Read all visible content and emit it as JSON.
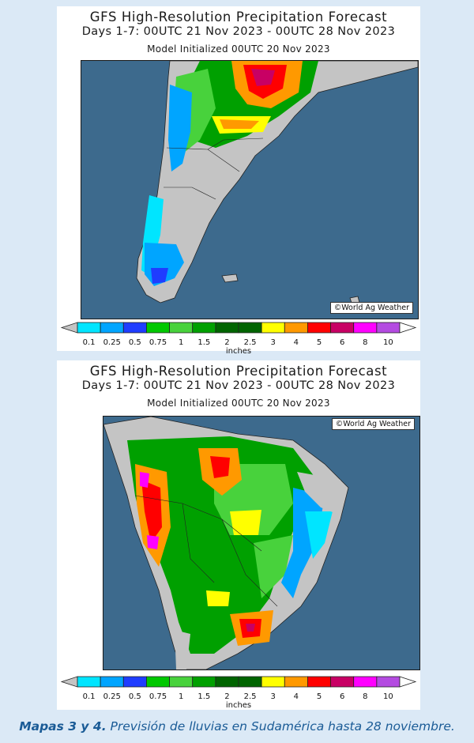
{
  "maps": [
    {
      "title": "GFS High-Resolution Precipitation Forecast",
      "period": "Days 1-7: 00UTC 21 Nov 2023 - 00UTC 28 Nov 2023",
      "initialized": "Model Initialized 00UTC 20 Nov 2023",
      "credit": "©World Ag Weather",
      "region": "southern-south-america"
    },
    {
      "title": "GFS High-Resolution Precipitation Forecast",
      "period": "Days 1-7: 00UTC 21 Nov 2023 - 00UTC 28 Nov 2023",
      "initialized": "Model Initialized 00UTC 20 Nov 2023",
      "credit": "©World Ag Weather",
      "region": "northern-south-america"
    }
  ],
  "legend": {
    "units": "inches",
    "ticks": [
      "0.1",
      "0.25",
      "0.5",
      "0.75",
      "1",
      "1.5",
      "2",
      "2.5",
      "3",
      "4",
      "5",
      "6",
      "8",
      "10"
    ],
    "colors": [
      "#00e5ff",
      "#00a5ff",
      "#1f3dff",
      "#00c800",
      "#48d23c",
      "#00a000",
      "#006400",
      "#006400",
      "#ffff00",
      "#ff9900",
      "#ff0000",
      "#c80064",
      "#ff00ff",
      "#b44be1"
    ]
  },
  "colors": {
    "ocean": "#3d6a8d",
    "land_dry": "#c4c4c4",
    "background": "#dbe9f6",
    "caption": "#1a5b96"
  },
  "caption": {
    "bold": "Mapas 3 y 4.",
    "text": "Previsión de lluvias en Sudamérica hasta 28 noviembre."
  }
}
